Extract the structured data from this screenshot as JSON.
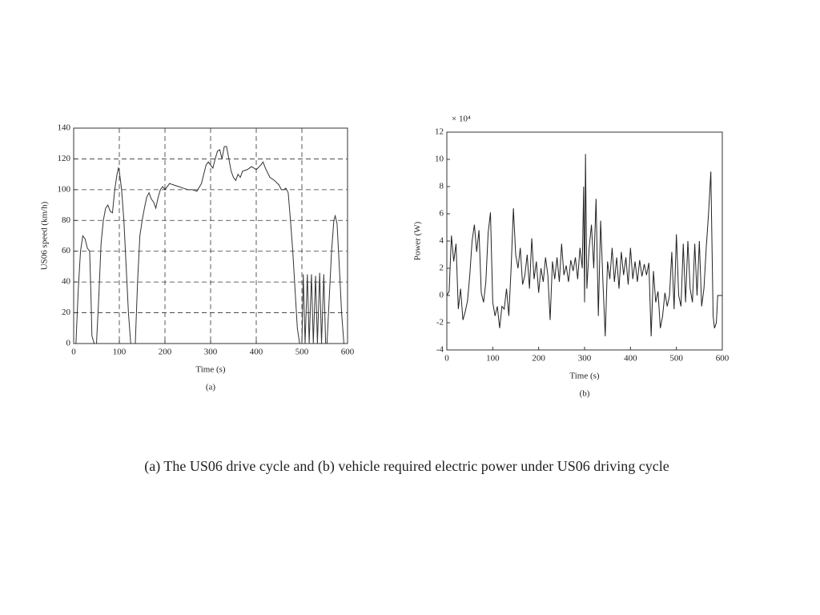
{
  "chart_data": [
    {
      "type": "line",
      "panel": "(a)",
      "xlabel": "Time (s)",
      "ylabel": "US06 speed (km/h)",
      "xlim": [
        0,
        600
      ],
      "ylim": [
        0,
        140
      ],
      "xticks": [
        0,
        100,
        200,
        300,
        400,
        500,
        600
      ],
      "yticks": [
        0,
        20,
        40,
        60,
        80,
        100,
        120,
        140
      ],
      "grid": true,
      "color": "#333333",
      "x": [
        0,
        5,
        10,
        15,
        20,
        25,
        30,
        35,
        38,
        40,
        45,
        50,
        55,
        60,
        65,
        70,
        75,
        80,
        85,
        90,
        95,
        98,
        100,
        105,
        110,
        115,
        120,
        125,
        135,
        140,
        145,
        150,
        155,
        160,
        165,
        170,
        175,
        180,
        185,
        190,
        195,
        200,
        210,
        220,
        230,
        240,
        250,
        260,
        270,
        280,
        285,
        290,
        295,
        300,
        305,
        310,
        315,
        320,
        325,
        330,
        335,
        340,
        345,
        350,
        355,
        360,
        365,
        370,
        380,
        390,
        400,
        410,
        415,
        420,
        430,
        440,
        450,
        455,
        460,
        465,
        470,
        475,
        480,
        485,
        490,
        495,
        500,
        503,
        507,
        512,
        516,
        521,
        525,
        530,
        534,
        539,
        543,
        548,
        552,
        555,
        560,
        565,
        570,
        573,
        577,
        582,
        587,
        592,
        600
      ],
      "values": [
        0,
        0,
        35,
        60,
        70,
        68,
        62,
        60,
        30,
        5,
        0,
        0,
        30,
        65,
        80,
        88,
        90,
        86,
        85,
        100,
        110,
        114,
        112,
        100,
        80,
        50,
        20,
        0,
        0,
        40,
        70,
        80,
        88,
        95,
        98,
        94,
        92,
        88,
        95,
        100,
        102,
        100,
        104,
        103,
        102,
        101,
        100,
        100,
        99,
        104,
        110,
        116,
        118,
        116,
        114,
        120,
        125,
        126,
        120,
        128,
        128,
        120,
        112,
        108,
        106,
        110,
        108,
        112,
        113,
        115,
        113,
        116,
        118,
        114,
        108,
        106,
        103,
        100,
        100,
        101,
        98,
        80,
        60,
        35,
        10,
        0,
        0,
        45,
        0,
        45,
        0,
        45,
        0,
        44,
        0,
        46,
        0,
        45,
        0,
        0,
        30,
        60,
        80,
        83,
        78,
        50,
        20,
        0,
        0
      ]
    },
    {
      "type": "line",
      "panel": "(b)",
      "xlabel": "Time (s)",
      "ylabel": "Power (W)",
      "multiplier": "× 10⁴",
      "xlim": [
        0,
        600
      ],
      "ylim": [
        -4,
        12
      ],
      "xticks": [
        0,
        100,
        200,
        300,
        400,
        500,
        600
      ],
      "yticks": [
        -4,
        -2,
        0,
        2,
        4,
        6,
        8,
        10,
        12
      ],
      "grid": false,
      "color": "#222222",
      "x": [
        0,
        5,
        10,
        15,
        20,
        25,
        30,
        35,
        40,
        45,
        50,
        55,
        60,
        65,
        70,
        75,
        80,
        85,
        90,
        95,
        100,
        105,
        110,
        115,
        120,
        125,
        130,
        135,
        140,
        145,
        150,
        155,
        160,
        165,
        170,
        175,
        180,
        185,
        190,
        195,
        200,
        205,
        210,
        215,
        220,
        225,
        230,
        235,
        240,
        245,
        250,
        255,
        260,
        265,
        270,
        275,
        280,
        285,
        290,
        295,
        298,
        300,
        302,
        305,
        310,
        315,
        320,
        325,
        330,
        335,
        340,
        345,
        350,
        355,
        360,
        365,
        370,
        375,
        380,
        385,
        390,
        395,
        400,
        405,
        410,
        415,
        420,
        425,
        430,
        435,
        440,
        445,
        450,
        455,
        460,
        465,
        470,
        475,
        480,
        485,
        490,
        495,
        500,
        505,
        510,
        515,
        520,
        525,
        530,
        535,
        540,
        545,
        550,
        555,
        560,
        565,
        570,
        575,
        580,
        583,
        587,
        590,
        595,
        600
      ],
      "values": [
        0,
        0.3,
        4.4,
        2.5,
        3.8,
        -1,
        0.5,
        -1.8,
        -1.2,
        -0.4,
        1.5,
        4,
        5.2,
        3.2,
        4.8,
        0.2,
        -0.5,
        1,
        4.6,
        6.1,
        -0.5,
        -1.5,
        -0.8,
        -2.4,
        -0.8,
        -1,
        0.5,
        -1.5,
        2,
        6.4,
        3,
        2,
        3.5,
        0.8,
        1.5,
        3,
        0.5,
        4.2,
        1.2,
        2.5,
        0.2,
        2,
        1,
        2.8,
        1.5,
        -1.8,
        2.5,
        1.2,
        2.8,
        1,
        3.8,
        1.5,
        2.2,
        1,
        2.6,
        1.8,
        2.8,
        1.2,
        3.5,
        2,
        8,
        -0.5,
        10.4,
        0.5,
        3.5,
        5.2,
        2,
        7.1,
        -1.5,
        5.5,
        1,
        -3,
        2.5,
        1.2,
        3.5,
        1,
        2.8,
        0.5,
        3.2,
        1.5,
        2.8,
        0.8,
        3.5,
        1.2,
        2.5,
        1,
        2.6,
        1.4,
        2.3,
        1.5,
        2.4,
        -3,
        1.8,
        -0.5,
        0.3,
        -2.4,
        -1.5,
        0.2,
        -0.8,
        0,
        3.2,
        -1,
        4.5,
        0,
        -0.8,
        3.8,
        -0.5,
        4,
        0.5,
        -0.5,
        3.8,
        0,
        4,
        -0.8,
        0.5,
        3.5,
        6,
        9.1,
        -1.5,
        -2.4,
        -2,
        0,
        0,
        0
      ]
    }
  ],
  "caption": "(a) The US06 drive cycle and (b) vehicle required electric power under US06 driving cycle"
}
